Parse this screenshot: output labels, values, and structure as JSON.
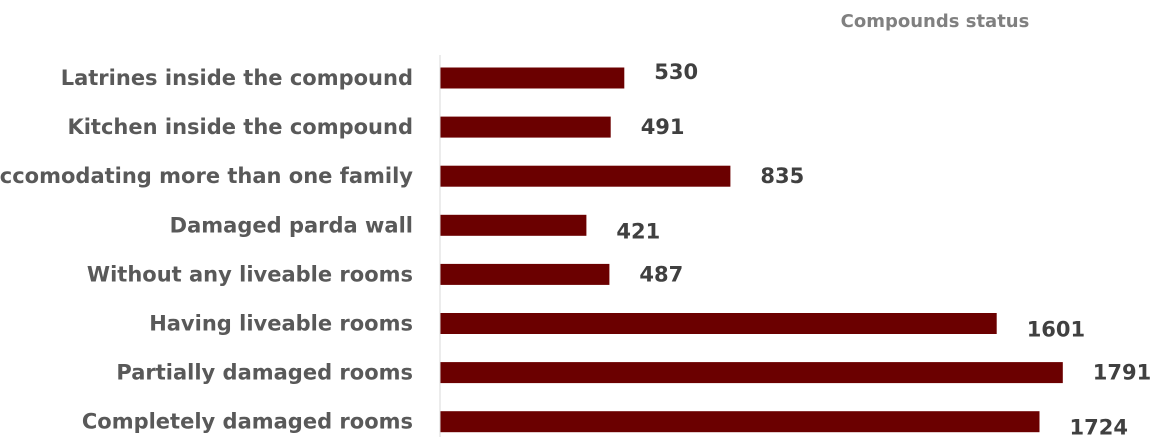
{
  "chart_data": {
    "type": "bar",
    "orientation": "horizontal",
    "title": "Compounds status",
    "xlabel": "",
    "ylabel": "",
    "categories": [
      "Latrines inside the compound",
      "Kitchen inside the compound",
      "Accomodating more than one family",
      "Damaged parda wall",
      "Without any liveable rooms",
      "Having liveable rooms",
      "Partially damaged rooms",
      "Completely damaged rooms"
    ],
    "values": [
      530,
      491,
      835,
      421,
      487,
      1601,
      1791,
      1724
    ],
    "xlim": [
      0,
      1800
    ],
    "grid": false,
    "legend": "none",
    "bar_color": "#6b0000"
  }
}
